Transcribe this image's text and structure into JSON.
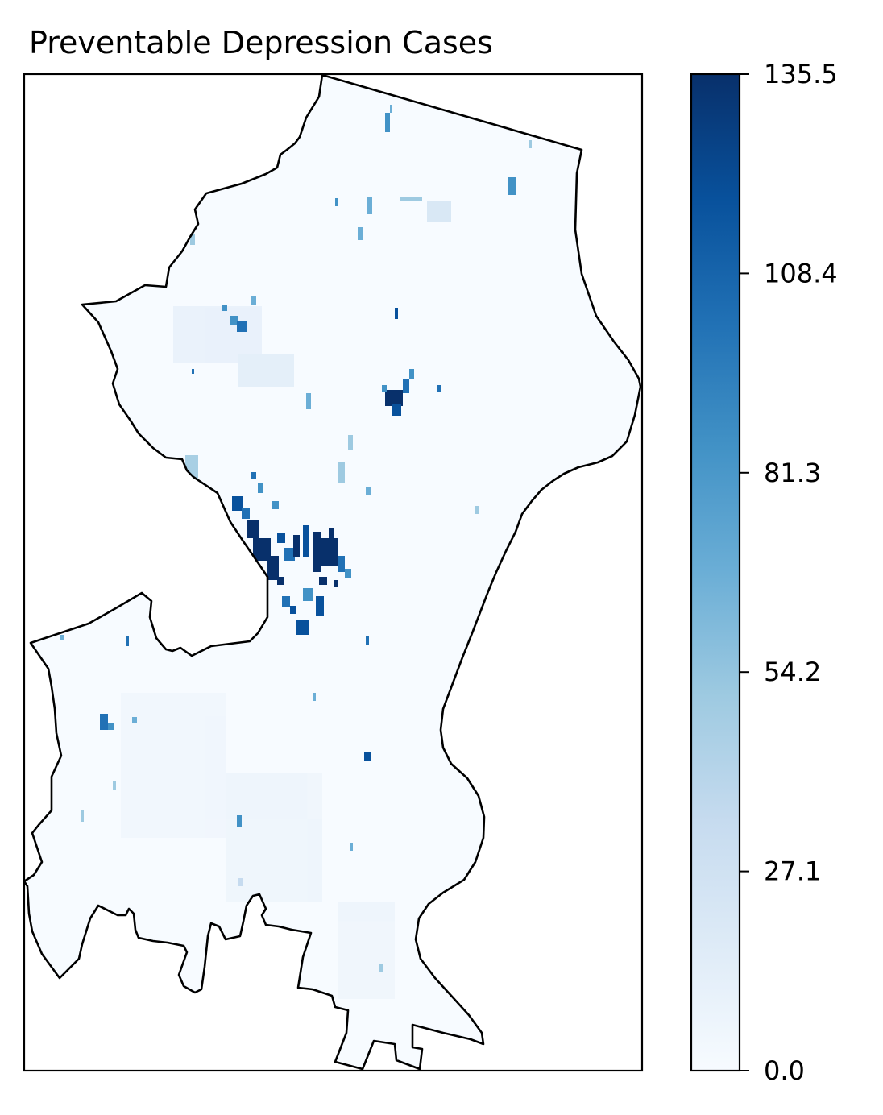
{
  "figure": {
    "title": "Preventable Depression Cases"
  },
  "colorbar": {
    "colormap": "Blues",
    "min": 0.0,
    "max": 135.5,
    "ticks": [
      {
        "value": 0.0,
        "label": "0.0"
      },
      {
        "value": 27.1,
        "label": "27.1"
      },
      {
        "value": 54.2,
        "label": "54.2"
      },
      {
        "value": 81.3,
        "label": "81.3"
      },
      {
        "value": 108.4,
        "label": "108.4"
      },
      {
        "value": 135.5,
        "label": "135.5"
      }
    ],
    "color_low": "#f7fbff",
    "color_high": "#08306b"
  },
  "map": {
    "outline_color": "#000000",
    "background_value_color": "#f7fbff",
    "hotspots": [
      {
        "name": "central-cluster",
        "intensity": 120
      },
      {
        "name": "central-cluster-east",
        "intensity": 125
      },
      {
        "name": "northeast-cluster",
        "intensity": 110
      },
      {
        "name": "northwest-cluster",
        "intensity": 70
      },
      {
        "name": "south-central-cluster",
        "intensity": 95
      }
    ]
  }
}
